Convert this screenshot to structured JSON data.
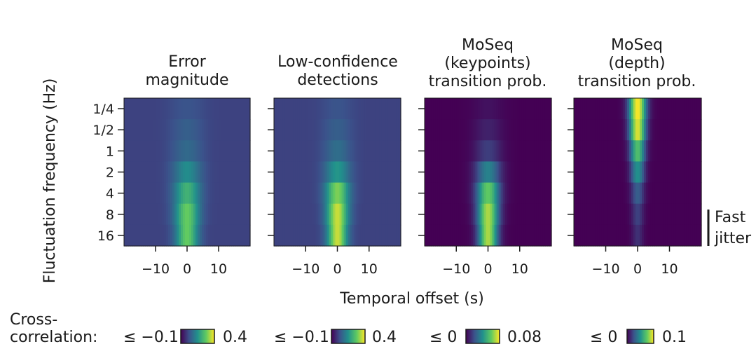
{
  "chart_data": {
    "type": "heatmap",
    "ylabel": "Fluctuation frequency (Hz)",
    "xlabel": "Temporal offset (s)",
    "y_categories": [
      "1/4",
      "1/2",
      "1",
      "2",
      "4",
      "8",
      "16"
    ],
    "x_ticks": [
      -10,
      0,
      10
    ],
    "x_tick_labels": [
      "−10",
      "0",
      "10"
    ],
    "xlim": [
      -20,
      20
    ],
    "panels": [
      {
        "title_lines": [
          "Error",
          "magnitude"
        ],
        "peak_by_frequency": [
          0.03,
          0.05,
          0.07,
          0.14,
          0.22,
          0.28,
          0.28
        ],
        "peak_width_s": 2.5,
        "cbar": {
          "min_label": "≤ −0.1",
          "max_label": "0.4",
          "min": -0.1,
          "max": 0.4
        }
      },
      {
        "title_lines": [
          "Low-confidence",
          "detections"
        ],
        "peak_by_frequency": [
          0.03,
          0.05,
          0.08,
          0.16,
          0.3,
          0.36,
          0.36
        ],
        "peak_width_s": 2.2,
        "cbar": {
          "min_label": "≤ −0.1",
          "max_label": "0.4",
          "min": -0.1,
          "max": 0.4
        }
      },
      {
        "title_lines": [
          "MoSeq",
          "(keypoints)",
          "transition prob."
        ],
        "peak_by_frequency": [
          0.004,
          0.008,
          0.015,
          0.035,
          0.06,
          0.07,
          0.07
        ],
        "peak_width_s": 2.2,
        "cbar": {
          "min_label": "≤ 0",
          "max_label": "0.08",
          "min": 0,
          "max": 0.08
        }
      },
      {
        "title_lines": [
          "MoSeq",
          "(depth)",
          "transition prob."
        ],
        "peak_by_frequency": [
          0.1,
          0.095,
          0.07,
          0.05,
          0.03,
          0.02,
          0.015
        ],
        "peak_width_s": 1.2,
        "cbar": {
          "min_label": "≤ 0",
          "max_label": "0.1",
          "min": 0,
          "max": 0.1
        }
      }
    ],
    "cbar_label_lines": [
      "Cross-",
      "correlation:"
    ],
    "annotation_lines": [
      "Fast",
      "jitter"
    ],
    "colormap": [
      "#440154",
      "#3b528b",
      "#21918c",
      "#5ec962",
      "#fde725"
    ]
  }
}
